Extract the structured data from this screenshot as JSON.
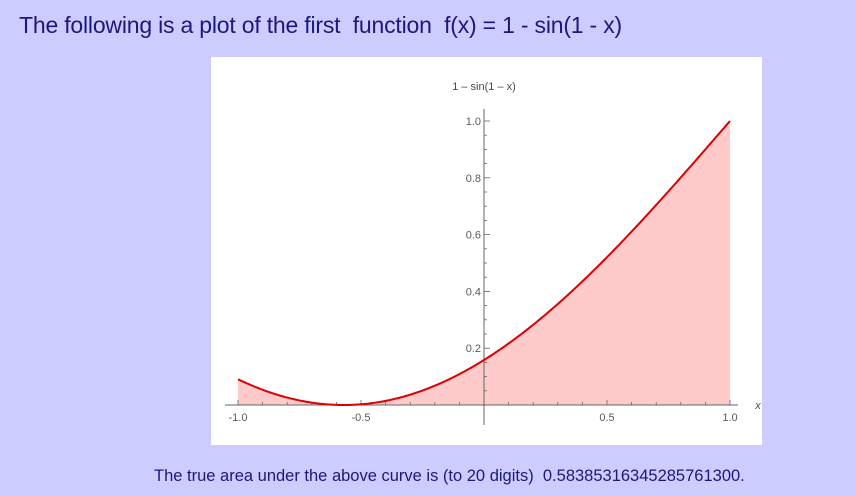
{
  "heading": "The following is a plot of the first  function  f(x) = 1 - sin(1 - x)",
  "footer": "The true area under the above curve is (to 20 digits)  0.58385316345285761300.",
  "colors": {
    "background": "#ccccff",
    "text": "#1a1a7a",
    "curve": "#dd0000",
    "fill": "#ffcaca",
    "axis": "#666666"
  },
  "chart_data": {
    "type": "area",
    "function": "1 - sin(1 - x)",
    "title": "",
    "xlabel": "x",
    "ylabel": "1 – sin(1 – x)",
    "xlim": [
      -1.0,
      1.0
    ],
    "ylim": [
      0,
      1.0
    ],
    "x_ticks": [
      -1.0,
      -0.5,
      0.5,
      1.0
    ],
    "x_tick_labels": [
      "-1.0",
      "-0.5",
      "0.5",
      "1.0"
    ],
    "y_ticks": [
      0.2,
      0.4,
      0.6,
      0.8,
      1.0
    ],
    "y_tick_labels": [
      "0.2",
      "0.4",
      "0.6",
      "0.8",
      "1.0"
    ],
    "x": [
      -1.0,
      -0.9,
      -0.8,
      -0.7,
      -0.6,
      -0.5,
      -0.4,
      -0.3,
      -0.2,
      -0.1,
      0.0,
      0.1,
      0.2,
      0.3,
      0.4,
      0.5,
      0.6,
      0.7,
      0.8,
      0.9,
      1.0
    ],
    "y": [
      0.091,
      0.054,
      0.026,
      0.008,
      0.0,
      0.003,
      0.015,
      0.036,
      0.068,
      0.108,
      0.159,
      0.217,
      0.283,
      0.356,
      0.435,
      0.521,
      0.611,
      0.704,
      0.801,
      0.9,
      1.0
    ],
    "grid": false,
    "legend": "none"
  }
}
